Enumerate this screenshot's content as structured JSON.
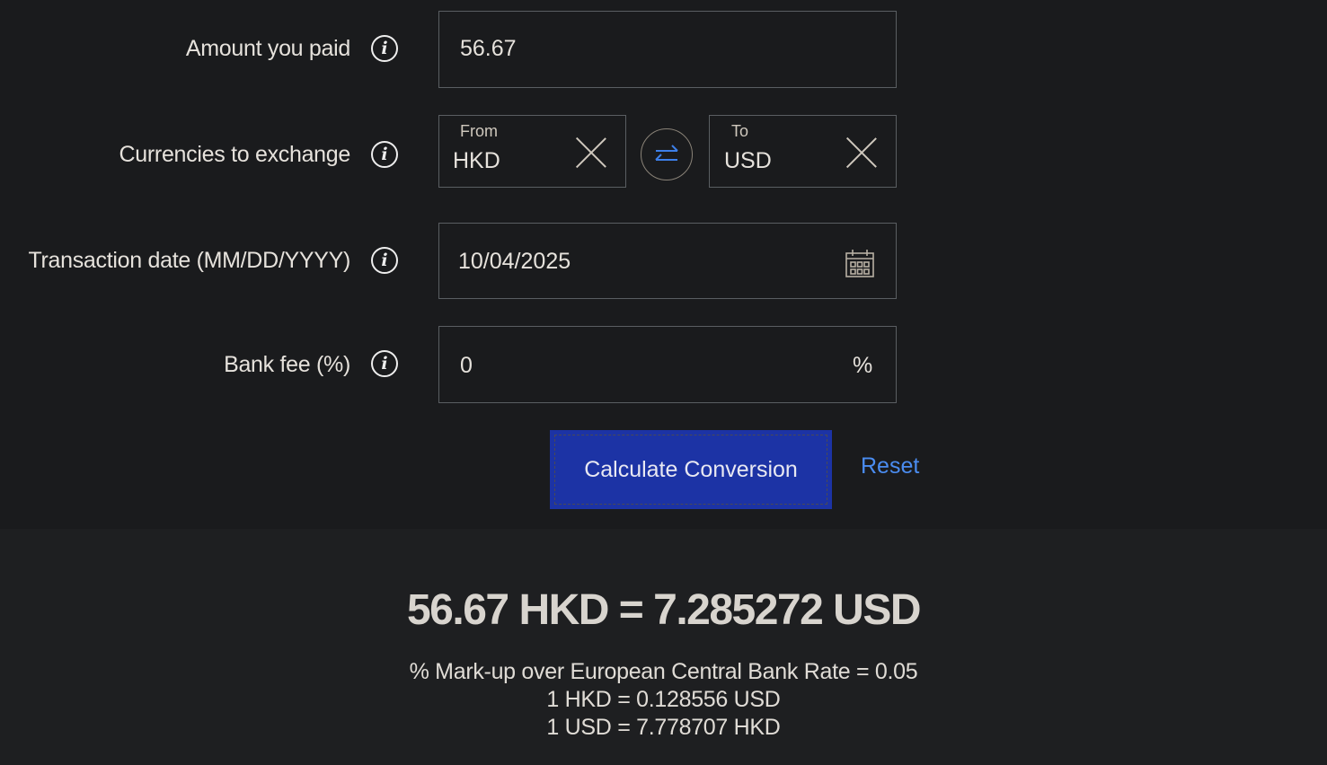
{
  "form": {
    "amount": {
      "label": "Amount you paid",
      "value": "56.67"
    },
    "currencies": {
      "label": "Currencies to exchange",
      "from_label": "From",
      "from_value": "HKD",
      "to_label": "To",
      "to_value": "USD"
    },
    "date": {
      "label": "Transaction date (MM/DD/YYYY)",
      "value": "10/04/2025"
    },
    "fee": {
      "label": "Bank fee (%)",
      "value": "0",
      "unit": "%"
    },
    "info_glyph": "i"
  },
  "actions": {
    "calculate": "Calculate Conversion",
    "reset": "Reset"
  },
  "result": {
    "headline": "56.67 HKD = 7.285272 USD",
    "markup": "% Mark-up over European Central Bank Rate = 0.05",
    "rate1": "1 HKD = 0.128556 USD",
    "rate2": "1 USD = 7.778707 HKD"
  },
  "colors": {
    "button": "#1c33a5",
    "link": "#4a8cf0",
    "swap_arrows": "#3d7fe8"
  },
  "icons": [
    "info-icon",
    "clear-icon",
    "swap-icon",
    "calendar-icon"
  ]
}
